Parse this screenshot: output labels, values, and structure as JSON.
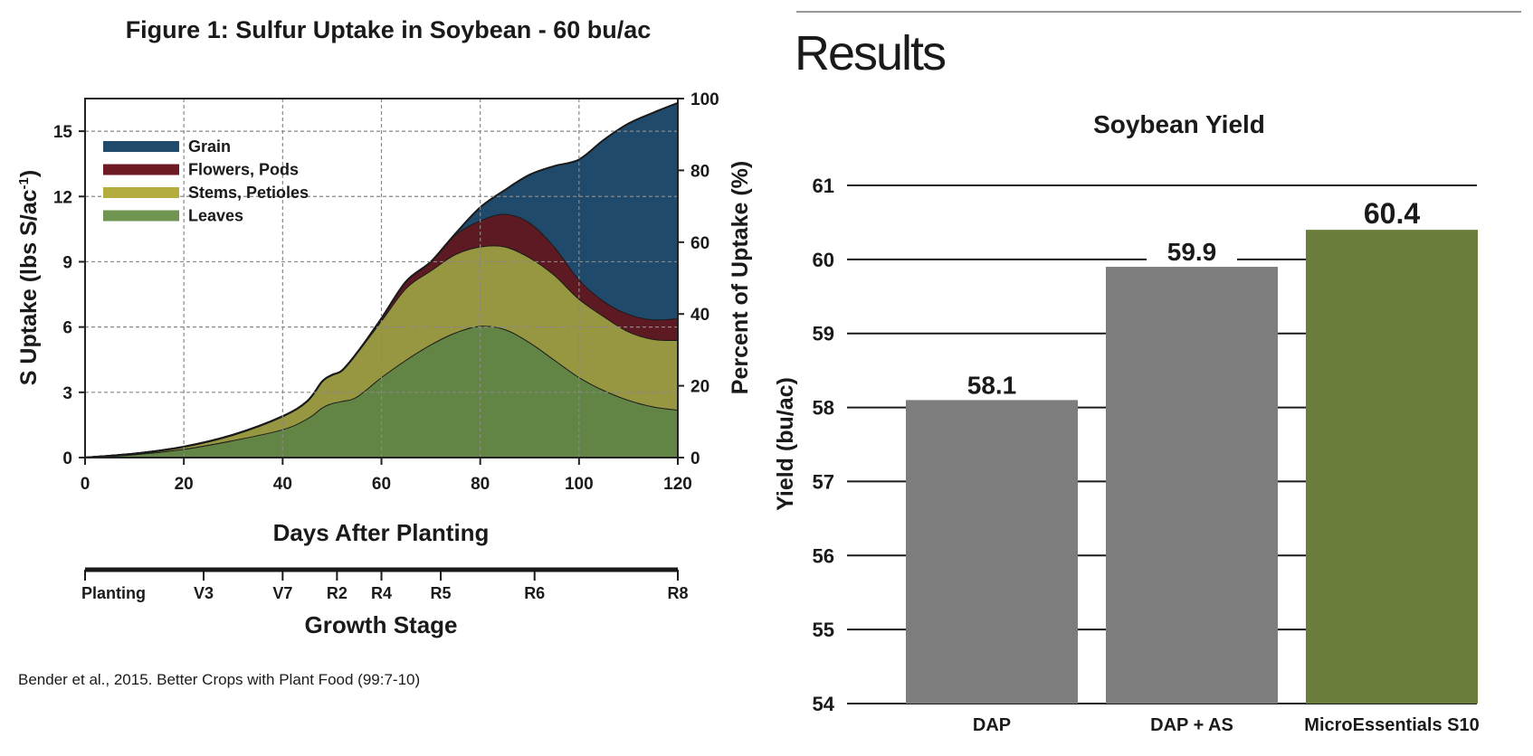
{
  "chart_data": [
    {
      "type": "area",
      "stacked": true,
      "title": "Figure 1: Sulfur Uptake in Soybean - 60 bu/ac",
      "xlabel": "Days After Planting",
      "ylabel": "S Uptake (lbs S/ac-1)",
      "ylabel_main": "S Uptake (lbs S/ac",
      "ylabel_sup": "-1",
      "ylabel_end": ")",
      "y2label": "Percent of Uptake (%)",
      "xlim": [
        0,
        120
      ],
      "ylim": [
        0,
        16.5
      ],
      "y2lim": [
        0,
        100
      ],
      "xticks": [
        "0",
        "20",
        "40",
        "60",
        "80",
        "100",
        "120"
      ],
      "yticks": [
        "0",
        "3",
        "6",
        "9",
        "12",
        "15"
      ],
      "y2ticks": [
        "0",
        "20",
        "40",
        "60",
        "80",
        "100"
      ],
      "grid": true,
      "legend": "top-left",
      "x": [
        0,
        10,
        20,
        30,
        40,
        45,
        48,
        50,
        52,
        55,
        60,
        65,
        70,
        75,
        80,
        85,
        90,
        95,
        100,
        105,
        110,
        115,
        120
      ],
      "series": [
        {
          "name": "Leaves",
          "color": "#628444",
          "values": [
            0,
            0.15,
            0.4,
            0.8,
            1.3,
            1.8,
            2.3,
            2.5,
            2.6,
            2.8,
            3.7,
            4.5,
            5.2,
            5.75,
            6.05,
            5.9,
            5.3,
            4.5,
            3.7,
            3.1,
            2.65,
            2.35,
            2.2
          ]
        },
        {
          "name": "Stems, Petioles",
          "color": "#979641",
          "values": [
            0,
            0.03,
            0.1,
            0.25,
            0.6,
            0.8,
            1.2,
            1.3,
            1.4,
            2.0,
            2.6,
            3.3,
            3.4,
            3.6,
            3.65,
            3.8,
            3.9,
            3.9,
            3.6,
            3.4,
            3.15,
            3.1,
            3.2
          ]
        },
        {
          "name": "Flowers, Pods",
          "color": "#5e1a22",
          "values": [
            0,
            0,
            0,
            0,
            0,
            0,
            0,
            0,
            0,
            0,
            0.1,
            0.3,
            0.4,
            0.9,
            1.2,
            1.5,
            1.6,
            1.3,
            0.9,
            0.7,
            0.8,
            0.9,
            1.0
          ]
        },
        {
          "name": "Grain",
          "color": "#1f4a6b",
          "values": [
            0,
            0,
            0,
            0,
            0,
            0,
            0,
            0,
            0,
            0,
            0,
            0,
            0,
            0.05,
            0.6,
            1.1,
            2.2,
            3.7,
            5.5,
            7.4,
            8.75,
            9.5,
            9.9
          ]
        }
      ],
      "growth_stage": {
        "label": "Growth Stage",
        "stages": [
          {
            "name": "Planting",
            "day": 0
          },
          {
            "name": "V3",
            "day": 24
          },
          {
            "name": "V7",
            "day": 40
          },
          {
            "name": "R2",
            "day": 51
          },
          {
            "name": "R4",
            "day": 60
          },
          {
            "name": "R5",
            "day": 72
          },
          {
            "name": "R6",
            "day": 91
          },
          {
            "name": "R8",
            "day": 120
          }
        ]
      },
      "source": "Bender et al., 2015. Better Crops with Plant Food (99:7-10)"
    },
    {
      "type": "bar",
      "title": "Soybean Yield",
      "ylabel": "Yield (bu/ac)",
      "xlabel": "",
      "ylim": [
        54,
        61
      ],
      "yticks": [
        "54",
        "55",
        "56",
        "57",
        "58",
        "59",
        "60",
        "61"
      ],
      "grid": true,
      "categories": [
        "DAP",
        "DAP + AS",
        "MicroEssentials S10"
      ],
      "values": [
        58.1,
        59.9,
        60.4
      ],
      "value_labels": [
        "58.1",
        "59.9",
        "60.4"
      ],
      "colors": [
        "#7c7d7c",
        "#7c7d7c",
        "#6a7d3b"
      ]
    }
  ],
  "section": {
    "heading": "Results"
  }
}
